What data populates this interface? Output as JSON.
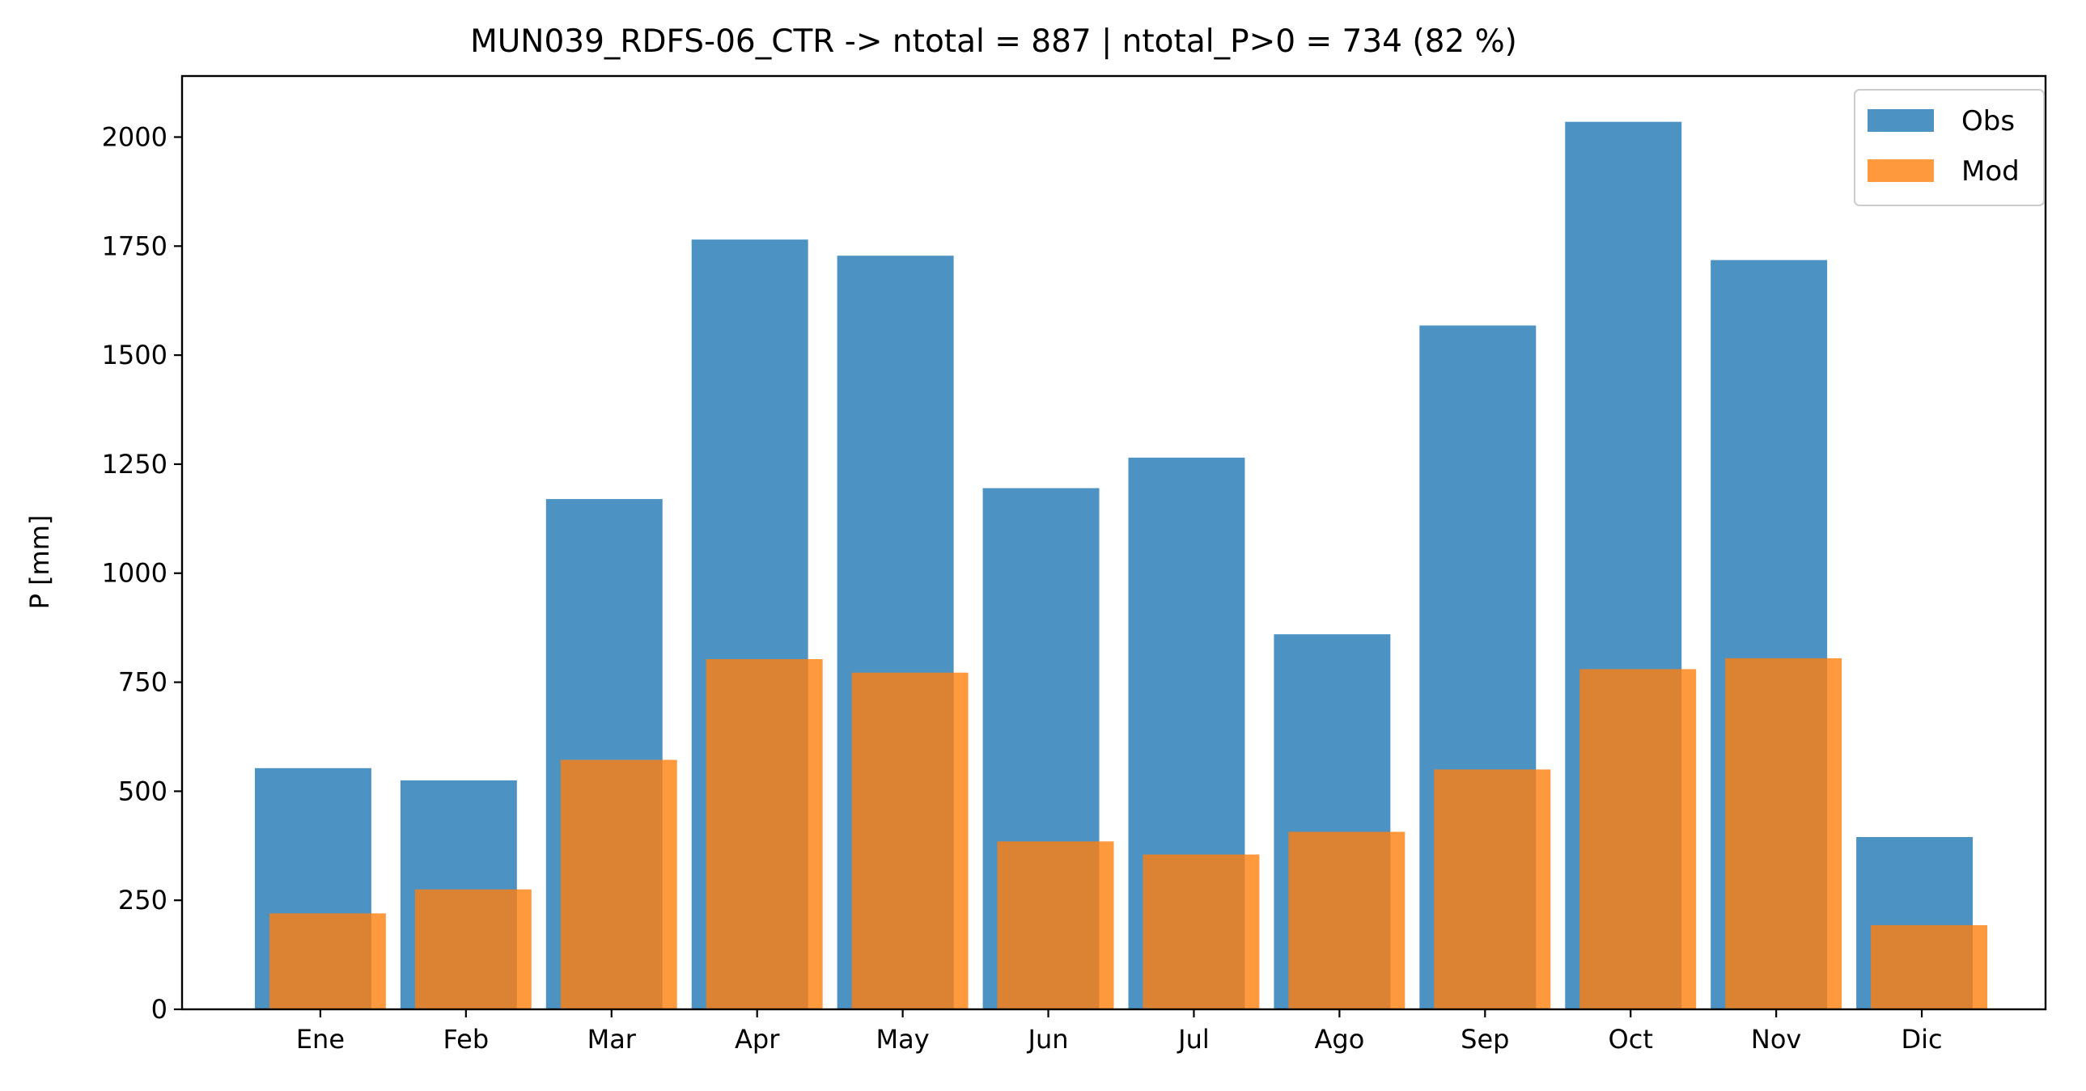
{
  "chart_data": {
    "type": "bar",
    "title": "MUN039_RDFS-06_CTR -> ntotal = 887 | ntotal_P>0 = 734 (82 %)",
    "xlabel": "",
    "ylabel": "P [mm]",
    "categories": [
      "Ene",
      "Feb",
      "Mar",
      "Apr",
      "May",
      "Jun",
      "Jul",
      "Ago",
      "Sep",
      "Oct",
      "Nov",
      "Dic"
    ],
    "series": [
      {
        "name": "Obs",
        "color": "#1f77b4",
        "values": [
          553,
          525,
          1170,
          1765,
          1728,
          1195,
          1265,
          860,
          1568,
          2035,
          1718,
          395
        ]
      },
      {
        "name": "Mod",
        "color": "#ff7f0e",
        "values": [
          220,
          275,
          572,
          803,
          772,
          385,
          355,
          407,
          550,
          780,
          805,
          193
        ]
      }
    ],
    "ylim": [
      0,
      2140
    ],
    "yticks": [
      0,
      250,
      500,
      750,
      1000,
      1250,
      1500,
      1750,
      2000
    ],
    "grid": false,
    "legend_position": "upper-right"
  }
}
